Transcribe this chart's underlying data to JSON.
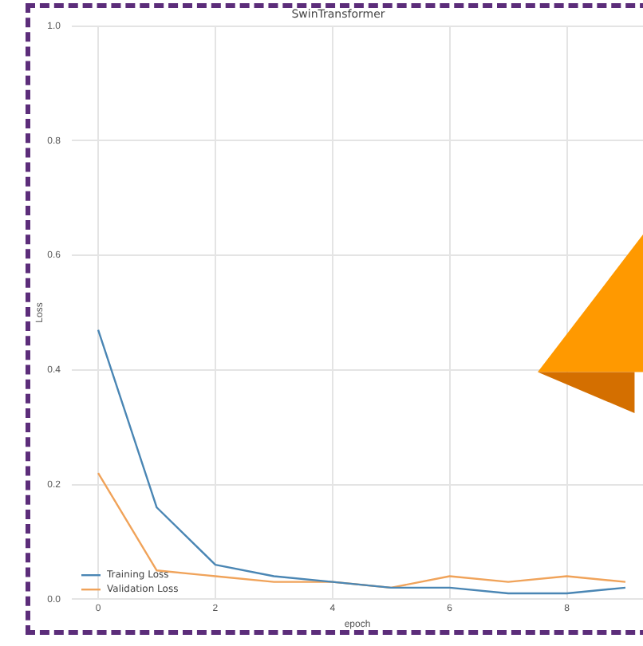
{
  "chart_data": {
    "type": "line",
    "title": "SwinTransformer",
    "xlabel": "epoch",
    "ylabel": "Loss",
    "x": [
      0,
      1,
      2,
      3,
      4,
      5,
      6,
      7,
      8,
      9
    ],
    "series": [
      {
        "name": "Training Loss",
        "color": "#4a86b4",
        "values": [
          0.47,
          0.16,
          0.06,
          0.04,
          0.03,
          0.02,
          0.02,
          0.01,
          0.01,
          0.02
        ]
      },
      {
        "name": "Validation Loss",
        "color": "#f0a35a",
        "values": [
          0.22,
          0.05,
          0.04,
          0.03,
          0.03,
          0.02,
          0.04,
          0.03,
          0.04,
          0.03
        ]
      }
    ],
    "xlim": [
      -0.45,
      9.3
    ],
    "xticks": [
      0,
      2,
      4,
      6,
      8
    ],
    "ylim": [
      0,
      1.0
    ],
    "yticks": [
      {
        "value": 0,
        "label": "0.0"
      },
      {
        "value": 0.2,
        "label": "0.2"
      },
      {
        "value": 0.4,
        "label": "0.4"
      },
      {
        "value": 0.6,
        "label": "0.6"
      },
      {
        "value": 0.8,
        "label": "0.8"
      },
      {
        "value": 1.0,
        "label": "1.0"
      }
    ],
    "grid": true,
    "legend": "bottom left",
    "marker": "none",
    "line_style": "solid"
  }
}
